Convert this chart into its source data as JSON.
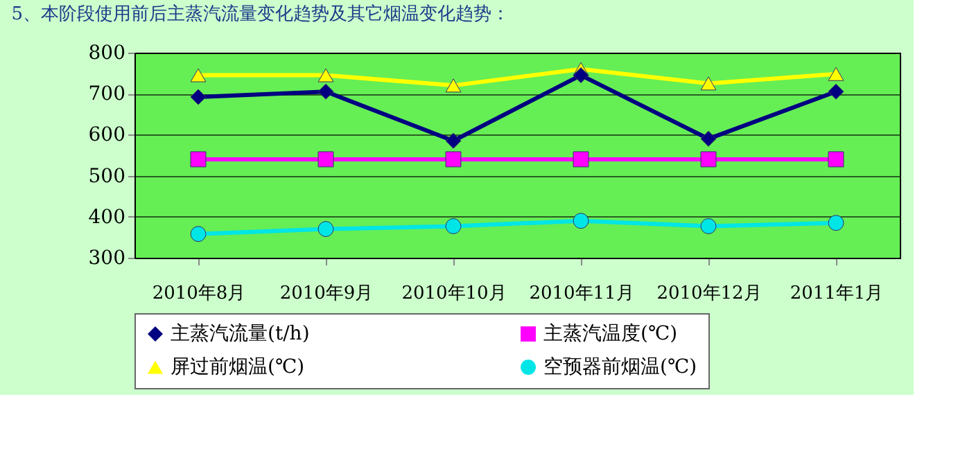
{
  "chart_data": {
    "type": "line",
    "title": "5、本阶段使用前后主蒸汽流量变化趋势及其它烟温变化趋势：",
    "categories": [
      "2010年8月",
      "2010年9月",
      "2010年10月",
      "2010年11月",
      "2010年12月",
      "2011年1月"
    ],
    "series": [
      {
        "name": "主蒸汽流量(t/h)",
        "color": "#000080",
        "marker": "diamond",
        "values": [
          692,
          705,
          585,
          745,
          590,
          705
        ]
      },
      {
        "name": "主蒸汽温度(℃)",
        "color": "#ff00ff",
        "marker": "square",
        "values": [
          540,
          540,
          540,
          540,
          540,
          540
        ]
      },
      {
        "name": "屏过前烟温(℃)",
        "color": "#ffff00",
        "marker": "triangle",
        "values": [
          745,
          745,
          720,
          760,
          725,
          748
        ]
      },
      {
        "name": "空预器前烟温(℃)",
        "color": "#00e5e5",
        "marker": "circle",
        "values": [
          358,
          370,
          377,
          390,
          377,
          385
        ]
      }
    ],
    "ylim": [
      300,
      800
    ],
    "yticks": [
      300,
      400,
      500,
      600,
      700,
      800
    ],
    "grid": "y",
    "legend": "bottom",
    "line_style": "solid"
  }
}
